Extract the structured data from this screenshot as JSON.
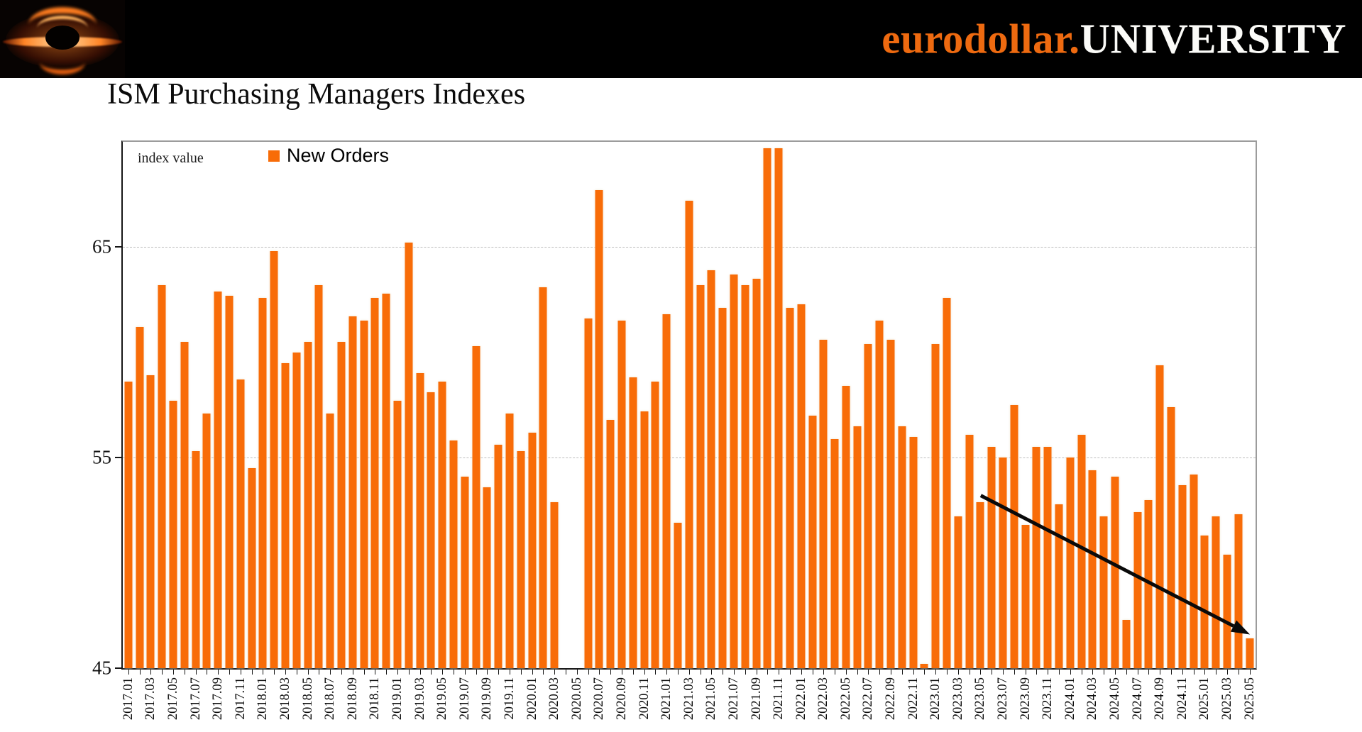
{
  "banner": {
    "brand_orange": "eurodollar.",
    "brand_white": "UNIVERSITY",
    "logo": "black-hole-accretion-disk-logo",
    "bg_color": "#000000",
    "accent_color": "#EE6A10"
  },
  "page_title": "ISM Purchasing Managers Indexes",
  "chart_data": {
    "type": "bar",
    "title": "ISM Purchasing Managers Indexes",
    "y_axis_note": "index value",
    "legend": [
      {
        "label": "New Orders",
        "color": "#F86C08"
      }
    ],
    "legend_position": "top-left-inside",
    "bar_color": "#F86C08",
    "grid": "horizontal-dashed",
    "gridlines": [
      55,
      65
    ],
    "yticks": [
      45,
      55,
      65
    ],
    "ylim": [
      45,
      70
    ],
    "categories": [
      "2017.01",
      "2017.02",
      "2017.03",
      "2017.04",
      "2017.05",
      "2017.06",
      "2017.07",
      "2017.08",
      "2017.09",
      "2017.10",
      "2017.11",
      "2017.12",
      "2018.01",
      "2018.02",
      "2018.03",
      "2018.04",
      "2018.05",
      "2018.06",
      "2018.07",
      "2018.08",
      "2018.09",
      "2018.10",
      "2018.11",
      "2018.12",
      "2019.01",
      "2019.02",
      "2019.03",
      "2019.04",
      "2019.05",
      "2019.06",
      "2019.07",
      "2019.08",
      "2019.09",
      "2019.10",
      "2019.11",
      "2019.12",
      "2020.01",
      "2020.02",
      "2020.03",
      "2020.04",
      "2020.05",
      "2020.06",
      "2020.07",
      "2020.08",
      "2020.09",
      "2020.10",
      "2020.11",
      "2020.12",
      "2021.01",
      "2021.02",
      "2021.03",
      "2021.04",
      "2021.05",
      "2021.06",
      "2021.07",
      "2021.08",
      "2021.09",
      "2021.10",
      "2021.11",
      "2021.12",
      "2022.01",
      "2022.02",
      "2022.03",
      "2022.04",
      "2022.05",
      "2022.06",
      "2022.07",
      "2022.08",
      "2022.09",
      "2022.10",
      "2022.11",
      "2022.12",
      "2023.01",
      "2023.02",
      "2023.03",
      "2023.04",
      "2023.05",
      "2023.06",
      "2023.07",
      "2023.08",
      "2023.09",
      "2023.10",
      "2023.11",
      "2023.12",
      "2024.01",
      "2024.02",
      "2024.03",
      "2024.04",
      "2024.05",
      "2024.06",
      "2024.07",
      "2024.08",
      "2024.09",
      "2024.10",
      "2024.11",
      "2024.12",
      "2025.01",
      "2025.02",
      "2025.03",
      "2025.04",
      "2025.05"
    ],
    "values": [
      58.6,
      61.2,
      58.9,
      63.2,
      57.7,
      60.5,
      55.3,
      57.1,
      62.9,
      62.7,
      58.7,
      54.5,
      62.6,
      64.8,
      59.5,
      60.0,
      60.5,
      63.2,
      57.1,
      60.5,
      61.7,
      61.5,
      62.6,
      62.8,
      57.7,
      65.2,
      59.0,
      58.1,
      58.6,
      55.8,
      54.1,
      60.3,
      53.6,
      55.6,
      57.1,
      55.3,
      56.2,
      63.1,
      52.9,
      null,
      null,
      61.6,
      67.7,
      56.8,
      61.5,
      58.8,
      57.2,
      58.6,
      61.8,
      51.9,
      67.2,
      63.2,
      63.9,
      62.1,
      63.7,
      63.2,
      63.5,
      69.7,
      69.7,
      62.1,
      62.3,
      57.0,
      60.6,
      55.9,
      58.4,
      56.5,
      60.4,
      61.5,
      60.6,
      56.5,
      56.0,
      45.2,
      60.4,
      62.6,
      52.2,
      56.1,
      52.9,
      55.5,
      55.0,
      57.5,
      51.8,
      55.5,
      55.5,
      52.8,
      55.0,
      56.1,
      54.4,
      52.2,
      54.1,
      47.3,
      52.4,
      53.0,
      59.4,
      57.4,
      53.7,
      54.2,
      51.3,
      52.2,
      50.4,
      52.3,
      46.4
    ],
    "x_tick_labels": [
      "2017.01",
      "2017.03",
      "2017.05",
      "2017.07",
      "2017.09",
      "2017.11",
      "2018.01",
      "2018.03",
      "2018.05",
      "2018.07",
      "2018.09",
      "2018.11",
      "2019.01",
      "2019.03",
      "2019.05",
      "2019.07",
      "2019.09",
      "2019.11",
      "2020.01",
      "2020.03",
      "2020.05",
      "2020.07",
      "2020.09",
      "2020.11",
      "2021.01",
      "2021.03",
      "2021.05",
      "2021.07",
      "2021.09",
      "2021.11",
      "2022.01",
      "2022.03",
      "2022.05",
      "2022.07",
      "2022.09",
      "2022.11",
      "2023.01",
      "2023.03",
      "2023.05",
      "2023.07",
      "2023.09",
      "2023.11",
      "2024.01",
      "2024.03",
      "2024.05",
      "2024.07",
      "2024.09",
      "2024.11",
      "2025.01",
      "2025.03",
      "2025.05"
    ],
    "annotation_arrow": {
      "from_month": "2023.05",
      "from_value": 53.2,
      "to_month": "2025.05",
      "to_value": 46.6,
      "color": "#0a0a0a"
    }
  }
}
